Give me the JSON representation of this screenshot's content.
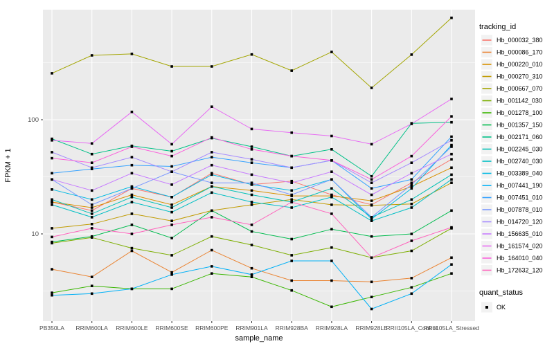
{
  "figure": {
    "y_axis": {
      "label": "FPKM + 1",
      "ticks": [
        {
          "value": 100,
          "label": "100"
        },
        {
          "value": 10,
          "label": "10"
        }
      ],
      "minor_gridlines": [
        316.23,
        31.623,
        3.1623
      ]
    },
    "x_axis": {
      "label": "sample_name"
    },
    "legend": {
      "tracking_title": "tracking_id",
      "quant_title": "quant_status",
      "quant_items": [
        {
          "label": "OK",
          "marker": "black-square"
        }
      ]
    }
  },
  "chart_data": {
    "type": "line",
    "title": "",
    "xlabel": "sample_name",
    "ylabel": "FPKM + 1",
    "y_scale": "log10",
    "ylim": [
      1.8,
      920
    ],
    "y_ticks": [
      10,
      100
    ],
    "grid": true,
    "legend_position": "right",
    "point_marker": {
      "shape": "square",
      "color": "#000000",
      "legend_label": "OK"
    },
    "panel_bg": "#EBEBEB",
    "categories": [
      "PB350LA",
      "RRIM600LA",
      "RRIM600LE",
      "RRIM600SE",
      "RRIM600PE",
      "RRIM901LA",
      "RRIM928BA",
      "RRIM928LA",
      "RRIM928LE",
      "RRII105LA_Control",
      "RRII105LA_Stressed"
    ],
    "series": [
      {
        "name": "Hb_000032_380",
        "color": "#F8766D",
        "values": [
          19,
          16,
          25,
          21,
          34,
          27,
          29,
          22,
          18,
          28,
          45
        ]
      },
      {
        "name": "Hb_000086_170",
        "color": "#EA8331",
        "values": [
          4.9,
          4.2,
          7.1,
          4.6,
          7.2,
          5,
          3.9,
          3.9,
          3.8,
          4.1,
          6.2
        ]
      },
      {
        "name": "Hb_000220_010",
        "color": "#D89000",
        "values": [
          19,
          17,
          22,
          18,
          26,
          24,
          21.5,
          21.5,
          19.5,
          26,
          38
        ]
      },
      {
        "name": "Hb_000270_310",
        "color": "#C09B00",
        "values": [
          11.2,
          12.2,
          15,
          13,
          16,
          18,
          20,
          18,
          17.8,
          18.3,
          28
        ]
      },
      {
        "name": "Hb_000667_070",
        "color": "#A3A500",
        "values": [
          255,
          366,
          377,
          293,
          293,
          373,
          269,
          392,
          190,
          372,
          780
        ]
      },
      {
        "name": "Hb_001142_030",
        "color": "#7CAE00",
        "values": [
          8.3,
          9.3,
          7.5,
          6.5,
          9.5,
          8,
          6.5,
          7.6,
          6.2,
          7.1,
          11.2
        ]
      },
      {
        "name": "Hb_001278_100",
        "color": "#39B600",
        "values": [
          3.05,
          3.5,
          3.3,
          3.3,
          4.5,
          4.2,
          3.2,
          2.3,
          2.8,
          3.4,
          4.5
        ]
      },
      {
        "name": "Hb_001357_150",
        "color": "#00BB4E",
        "values": [
          8.5,
          9.5,
          12,
          9.2,
          16,
          10.5,
          9,
          11,
          9.5,
          10,
          16
        ]
      },
      {
        "name": "Hb_002171_060",
        "color": "#00C087",
        "values": [
          68,
          50,
          59,
          53,
          69,
          58,
          48,
          55,
          32,
          93,
          95
        ]
      },
      {
        "name": "Hb_002245_030",
        "color": "#00C0B4",
        "values": [
          20,
          15,
          21,
          17,
          26,
          22,
          19,
          25,
          14,
          20,
          33
        ]
      },
      {
        "name": "Hb_002740_030",
        "color": "#00BFC4",
        "values": [
          18,
          14,
          19,
          15.5,
          23,
          19,
          17,
          21,
          13,
          17,
          30
        ]
      },
      {
        "name": "Hb_003389_040",
        "color": "#00B9E3",
        "values": [
          24.5,
          20,
          26,
          21,
          33,
          27,
          24,
          30,
          13.5,
          25,
          60
        ]
      },
      {
        "name": "Hb_007441_190",
        "color": "#00B0F6",
        "values": [
          2.9,
          3,
          3.3,
          4.4,
          5.2,
          4.4,
          5.8,
          5.8,
          2.2,
          3,
          5.4
        ]
      },
      {
        "name": "Hb_007451_010",
        "color": "#35A2FF",
        "values": [
          34,
          37,
          40,
          39,
          47,
          42,
          38,
          44,
          25,
          30,
          71
        ]
      },
      {
        "name": "Hb_007878_010",
        "color": "#7997FF",
        "values": [
          30,
          18,
          25,
          35,
          28,
          28,
          22,
          30,
          14,
          27,
          58
        ]
      },
      {
        "name": "Hb_014720_120",
        "color": "#A58AFF",
        "values": [
          52,
          38,
          47,
          35,
          52,
          45,
          38,
          44,
          28,
          42,
          66
        ]
      },
      {
        "name": "Hb_156635_010",
        "color": "#C77CFF",
        "values": [
          30,
          24,
          34,
          27,
          40,
          33,
          28,
          35,
          22,
          34,
          50
        ]
      },
      {
        "name": "Hb_161574_020",
        "color": "#E76BF3",
        "values": [
          66,
          62,
          117,
          61,
          130,
          83,
          77,
          72,
          61,
          92,
          152
        ]
      },
      {
        "name": "Hb_164010_040",
        "color": "#FA62DB",
        "values": [
          46,
          42,
          58,
          48,
          70,
          55,
          48,
          44,
          30,
          48,
          107
        ]
      },
      {
        "name": "Hb_172632_120",
        "color": "#FF62BC",
        "values": [
          9.4,
          11.2,
          10,
          12,
          14,
          12,
          19,
          15,
          6.2,
          8.7,
          11.4
        ]
      }
    ]
  }
}
